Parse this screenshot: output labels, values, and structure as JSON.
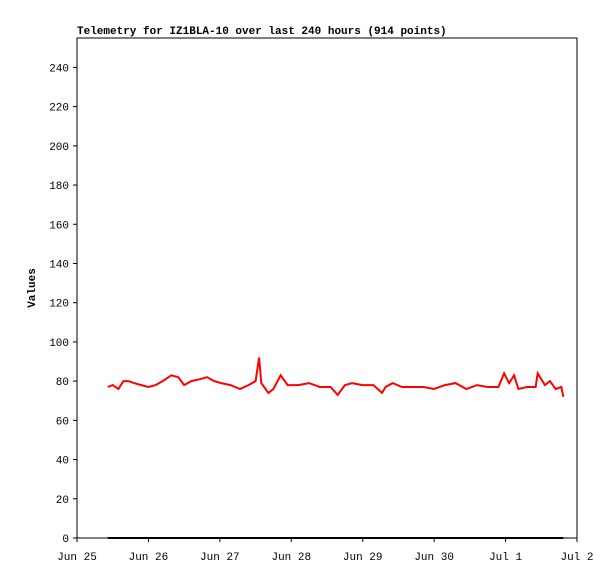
{
  "chart_data": {
    "type": "line",
    "title": "Telemetry for IZ1BLA-10 over last 240 hours (914 points)",
    "y_label": "Values",
    "xlim": [
      0,
      7
    ],
    "xticks": [
      {
        "value": 0,
        "label": "Jun 25"
      },
      {
        "value": 1,
        "label": "Jun 26"
      },
      {
        "value": 2,
        "label": "Jun 27"
      },
      {
        "value": 3,
        "label": "Jun 28"
      },
      {
        "value": 4,
        "label": "Jun 29"
      },
      {
        "value": 5,
        "label": "Jun 30"
      },
      {
        "value": 6,
        "label": "Jul 1"
      },
      {
        "value": 7,
        "label": "Jul 2"
      }
    ],
    "ylim": [
      0,
      255
    ],
    "yticks": [
      0,
      20,
      40,
      60,
      80,
      100,
      120,
      140,
      160,
      180,
      200,
      220,
      240
    ],
    "grid": false,
    "series": [
      {
        "color": "#ff0000",
        "x": [
          0.43,
          0.5,
          0.58,
          0.65,
          0.72,
          0.8,
          0.9,
          1.0,
          1.1,
          1.2,
          1.32,
          1.42,
          1.5,
          1.6,
          1.72,
          1.82,
          1.92,
          2.02,
          2.15,
          2.28,
          2.4,
          2.5,
          2.55,
          2.58,
          2.68,
          2.75,
          2.85,
          2.95,
          3.1,
          3.25,
          3.4,
          3.55,
          3.65,
          3.75,
          3.85,
          4.0,
          4.15,
          4.27,
          4.32,
          4.42,
          4.55,
          4.7,
          4.85,
          5.0,
          5.15,
          5.3,
          5.45,
          5.6,
          5.75,
          5.9,
          5.98,
          6.05,
          6.12,
          6.18,
          6.3,
          6.42,
          6.45,
          6.55,
          6.62,
          6.7,
          6.78,
          6.81
        ],
        "values": [
          77,
          78,
          76,
          80,
          80,
          79,
          78,
          77,
          78,
          80,
          83,
          82,
          78,
          80,
          81,
          82,
          80,
          79,
          78,
          76,
          78,
          80,
          92,
          79,
          74,
          76,
          83,
          78,
          78,
          79,
          77,
          77,
          73,
          78,
          79,
          78,
          78,
          74,
          77,
          79,
          77,
          77,
          77,
          76,
          78,
          79,
          76,
          78,
          77,
          77,
          84,
          79,
          83,
          76,
          77,
          77,
          84,
          78,
          80,
          76,
          77,
          72
        ]
      },
      {
        "color": "#000000",
        "x": [
          0.43,
          6.81
        ],
        "values": [
          0,
          0
        ]
      }
    ]
  }
}
